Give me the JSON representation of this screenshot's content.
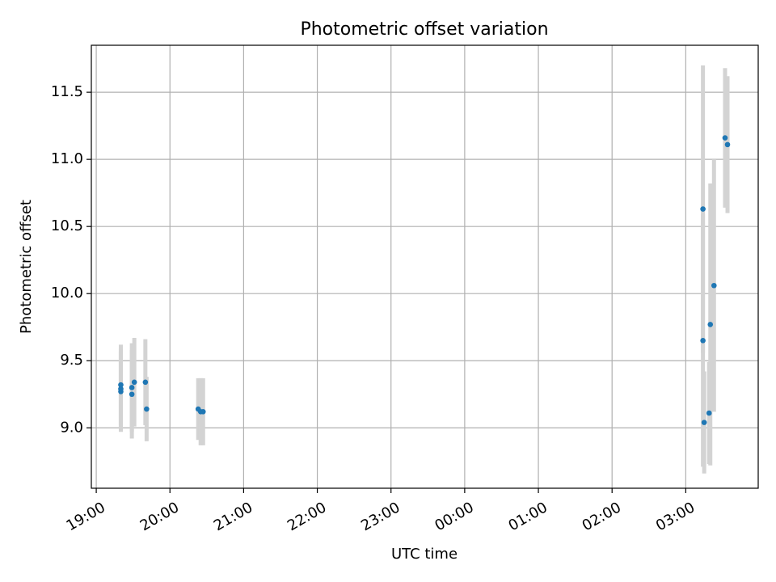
{
  "chart_data": {
    "type": "scatter",
    "title": "Photometric offset variation",
    "xlabel": "UTC time",
    "ylabel": "Photometric offset",
    "x_axis": {
      "kind": "time",
      "ticks": [
        "19:00",
        "20:00",
        "21:00",
        "22:00",
        "23:00",
        "00:00",
        "01:00",
        "02:00",
        "03:00"
      ],
      "range": [
        "18:56",
        "03:59"
      ]
    },
    "y_axis": {
      "ticks": [
        "9.0",
        "9.5",
        "10.0",
        "10.5",
        "11.0",
        "11.5"
      ],
      "range": [
        8.55,
        11.85
      ]
    },
    "grid": true,
    "colors": {
      "points": "#1f77b4",
      "errorbars": "#d3d3d3",
      "grid": "#b0b0b0"
    },
    "points": [
      {
        "x": "19:20",
        "y": 9.27,
        "err": 0.3
      },
      {
        "x": "19:20",
        "y": 9.29,
        "err": 0.3
      },
      {
        "x": "19:20",
        "y": 9.32,
        "err": 0.3
      },
      {
        "x": "19:29",
        "y": 9.25,
        "err": 0.33
      },
      {
        "x": "19:29",
        "y": 9.3,
        "err": 0.33
      },
      {
        "x": "19:31",
        "y": 9.34,
        "err": 0.33
      },
      {
        "x": "19:40",
        "y": 9.34,
        "err": 0.32
      },
      {
        "x": "19:41",
        "y": 9.14,
        "err": 0.24
      },
      {
        "x": "20:23",
        "y": 9.14,
        "err": 0.23
      },
      {
        "x": "20:25",
        "y": 9.12,
        "err": 0.25
      },
      {
        "x": "20:27",
        "y": 9.12,
        "err": 0.25
      },
      {
        "x": "03:14",
        "y": 10.63,
        "err": 1.07
      },
      {
        "x": "03:14",
        "y": 9.65,
        "err": 0.94
      },
      {
        "x": "03:15",
        "y": 9.04,
        "err": 0.38
      },
      {
        "x": "03:19",
        "y": 9.11,
        "err": 0.38
      },
      {
        "x": "03:20",
        "y": 9.77,
        "err": 1.05
      },
      {
        "x": "03:23",
        "y": 10.06,
        "err": 0.94
      },
      {
        "x": "03:32",
        "y": 11.16,
        "err": 0.52
      },
      {
        "x": "03:34",
        "y": 11.11,
        "err": 0.51
      }
    ]
  }
}
